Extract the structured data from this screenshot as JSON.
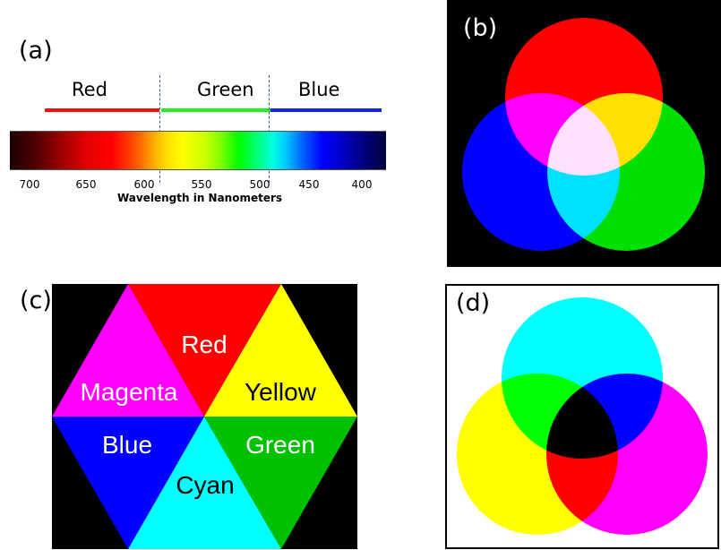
{
  "panel_a": {
    "label": "(a)",
    "bands": {
      "red": "Red",
      "green": "Green",
      "blue": "Blue"
    },
    "ticks": [
      "700",
      "650",
      "600",
      "550",
      "500",
      "450",
      "400"
    ],
    "axis_title": "Wavelength in Nanometers",
    "band_colors": {
      "red": "#ee1111",
      "green": "#22ee22",
      "blue": "#1122ee"
    }
  },
  "panel_b": {
    "label": "(b)",
    "circle_colors": {
      "top": "#ff0000",
      "left": "#0000ff",
      "right": "#00e000"
    },
    "overlap_colors": {
      "red_blue": "#ff00ff",
      "red_green": "#ffff00",
      "blue_green": "#00ffff",
      "all": "#ffffff"
    }
  },
  "panel_c": {
    "label": "(c)",
    "segments": {
      "top": "Red",
      "upper_right": "Yellow",
      "lower_right": "Green",
      "bottom": "Cyan",
      "lower_left": "Blue",
      "upper_left": "Magenta"
    }
  },
  "panel_d": {
    "label": "(d)",
    "circle_colors": {
      "top": "#00ffff",
      "left": "#ffff00",
      "right": "#ff00ff"
    },
    "overlap_colors": {
      "cyan_yellow": "#00cc00",
      "cyan_magenta": "#0000ff",
      "yellow_magenta": "#ff0000",
      "all": "#000000"
    }
  }
}
